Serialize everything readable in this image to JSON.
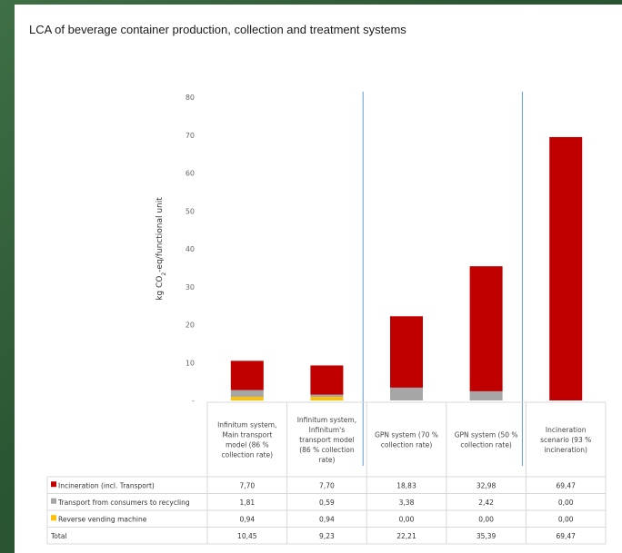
{
  "title": "LCA of beverage container production, collection and treatment systems",
  "colors": {
    "incineration": "#c00000",
    "transport": "#a6a6a6",
    "rvm": "#ffc000",
    "divider": "#5b9bd5"
  },
  "chart_data": {
    "type": "bar",
    "stacked": true,
    "ylabel": "kg CO2-eq/functional unit",
    "ylim": [
      0,
      80
    ],
    "yticks": [
      10,
      20,
      30,
      40,
      50,
      60,
      70,
      80
    ],
    "categories": [
      [
        "Infinitum system,",
        "Main transport",
        "model (86 %",
        "collection rate)"
      ],
      [
        "Infinitum system,",
        "Infinitum's",
        "transport model",
        "(86 % collection",
        "rate)"
      ],
      [
        "GPN system (70 %",
        "collection rate)"
      ],
      [
        "GPN system (50 %",
        "collection rate)"
      ],
      [
        "Incineration",
        "scenario (93 %",
        "incineration)"
      ]
    ],
    "series": [
      {
        "name": "Reverse vending machine",
        "key": "rvm",
        "values": [
          0.94,
          0.94,
          0.0,
          0.0,
          0.0
        ],
        "labels": [
          "0,94",
          "0,94",
          "0,00",
          "0,00",
          "0,00"
        ]
      },
      {
        "name": "Transport from consumers to recycling",
        "key": "transport",
        "values": [
          1.81,
          0.59,
          3.38,
          2.42,
          0.0
        ],
        "labels": [
          "1,81",
          "0,59",
          "3,38",
          "2,42",
          "0,00"
        ]
      },
      {
        "name": "Incineration (incl. Transport)",
        "key": "incineration",
        "values": [
          7.7,
          7.7,
          18.83,
          32.98,
          69.47
        ],
        "labels": [
          "7,70",
          "7,70",
          "18,83",
          "32,98",
          "69,47"
        ]
      }
    ],
    "table_rows": [
      {
        "label": "Incineration (incl. Transport)",
        "key": "incineration",
        "values": [
          "7,70",
          "7,70",
          "18,83",
          "32,98",
          "69,47"
        ]
      },
      {
        "label": "Transport from consumers to recycling",
        "key": "transport",
        "values": [
          "1,81",
          "0,59",
          "3,38",
          "2,42",
          "0,00"
        ]
      },
      {
        "label": "Reverse vending machine",
        "key": "rvm",
        "values": [
          "0,94",
          "0,94",
          "0,00",
          "0,00",
          "0,00"
        ]
      },
      {
        "label": "Total",
        "key": "",
        "values": [
          "10,45",
          "9,23",
          "22,21",
          "35,39",
          "69,47"
        ]
      }
    ]
  }
}
